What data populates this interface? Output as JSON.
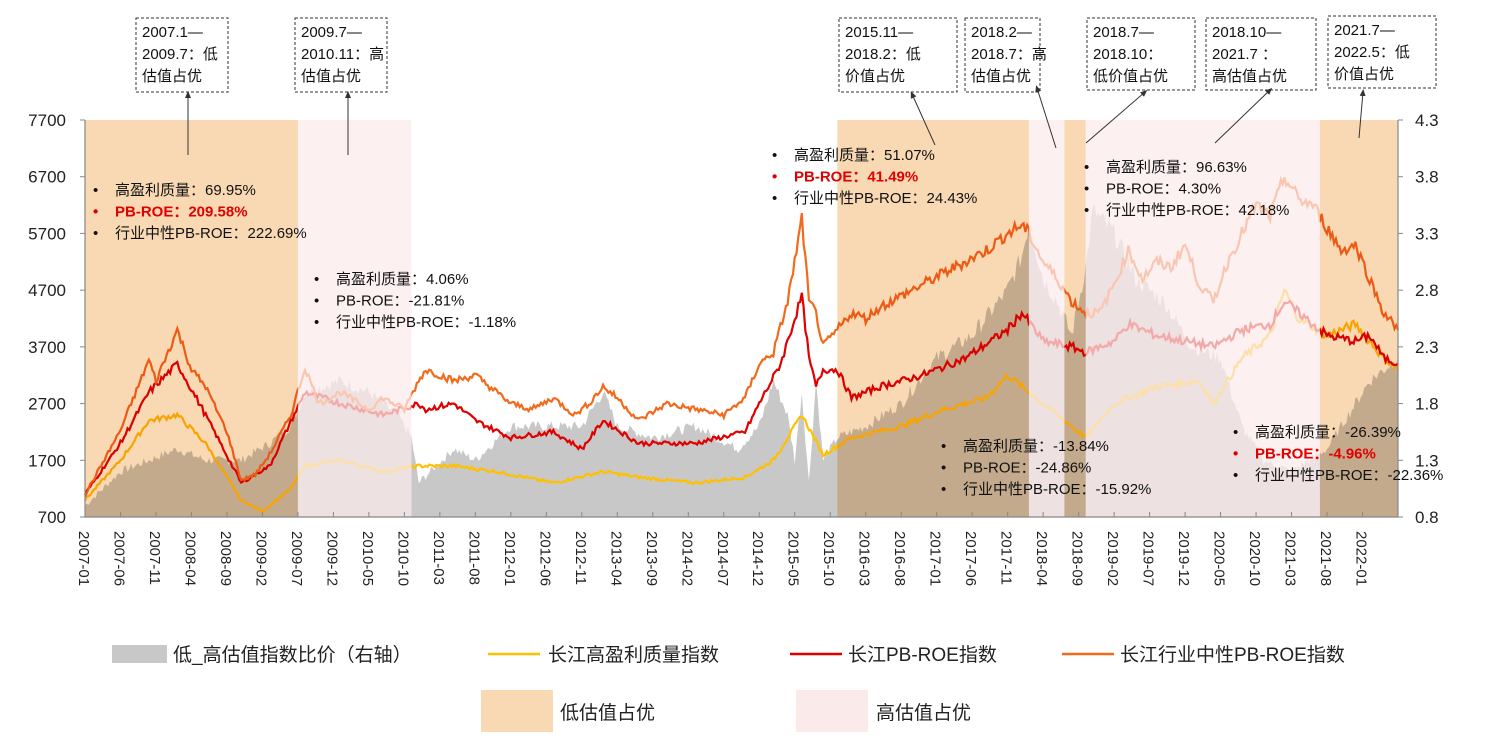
{
  "chart_data": {
    "type": "line",
    "x_unit": "months since 2007-01",
    "left_axis": {
      "range": [
        700,
        7700
      ],
      "ticks": [
        "700",
        "1700",
        "2700",
        "3700",
        "4700",
        "5700",
        "6700",
        "7700"
      ]
    },
    "right_axis": {
      "range": [
        0.8,
        4.3
      ],
      "ticks": [
        "0.8",
        "1.3",
        "1.8",
        "2.3",
        "2.8",
        "3.3",
        "3.8",
        "4.3"
      ]
    },
    "x_ticks": [
      "2007-01",
      "2007-06",
      "2007-11",
      "2008-04",
      "2008-09",
      "2009-02",
      "2009-07",
      "2009-12",
      "2010-05",
      "2010-10",
      "2011-03",
      "2011-08",
      "2012-01",
      "2012-06",
      "2012-11",
      "2013-04",
      "2013-09",
      "2014-02",
      "2014-07",
      "2014-12",
      "2015-05",
      "2015-10",
      "2016-03",
      "2016-08",
      "2017-01",
      "2017-06",
      "2017-11",
      "2018-04",
      "2018-09",
      "2019-02",
      "2019-07",
      "2019-12",
      "2020-05",
      "2020-10",
      "2021-03",
      "2021-08",
      "2022-01"
    ],
    "x_max": 185,
    "series": [
      {
        "name": "低_高估值指数比价（右轴）",
        "type": "area",
        "axis": "right",
        "color": "#c8c8c8",
        "points": [
          [
            0,
            0.9
          ],
          [
            5,
            1.2
          ],
          [
            9,
            1.3
          ],
          [
            13,
            1.4
          ],
          [
            17,
            1.3
          ],
          [
            22,
            1.3
          ],
          [
            26,
            1.45
          ],
          [
            29,
            1.6
          ],
          [
            31,
            1.9
          ],
          [
            36,
            2.0
          ],
          [
            40,
            1.9
          ],
          [
            44,
            1.7
          ],
          [
            46,
            1.5
          ],
          [
            47,
            1.1
          ],
          [
            52,
            1.4
          ],
          [
            55,
            1.3
          ],
          [
            60,
            1.6
          ],
          [
            66,
            1.6
          ],
          [
            70,
            1.6
          ],
          [
            73,
            1.9
          ],
          [
            75,
            1.6
          ],
          [
            80,
            1.5
          ],
          [
            86,
            1.6
          ],
          [
            92,
            1.4
          ],
          [
            95,
            1.6
          ],
          [
            97,
            2.0
          ],
          [
            99,
            1.7
          ],
          [
            100,
            1.3
          ],
          [
            101,
            1.9
          ],
          [
            102,
            1.1
          ],
          [
            103,
            2.0
          ],
          [
            104,
            1.3
          ],
          [
            106,
            1.5
          ],
          [
            110,
            1.6
          ],
          [
            115,
            1.8
          ],
          [
            120,
            2.2
          ],
          [
            125,
            2.4
          ],
          [
            130,
            2.8
          ],
          [
            132,
            3.1
          ],
          [
            133,
            3.4
          ],
          [
            135,
            2.9
          ],
          [
            137,
            2.7
          ],
          [
            139,
            2.4
          ],
          [
            141,
            3.0
          ],
          [
            142,
            3.5
          ],
          [
            145,
            3.3
          ],
          [
            148,
            2.9
          ],
          [
            152,
            2.7
          ],
          [
            156,
            2.3
          ],
          [
            160,
            2.2
          ],
          [
            163,
            1.6
          ],
          [
            166,
            1.3
          ],
          [
            170,
            1.2
          ],
          [
            175,
            1.4
          ],
          [
            178,
            1.7
          ],
          [
            181,
            2.0
          ],
          [
            185,
            2.2
          ]
        ]
      },
      {
        "name": "长江高盈利质量指数",
        "type": "line",
        "axis": "left",
        "color": "#ffc000",
        "points": [
          [
            0,
            1000
          ],
          [
            5,
            1700
          ],
          [
            9,
            2400
          ],
          [
            13,
            2500
          ],
          [
            17,
            2000
          ],
          [
            22,
            1000
          ],
          [
            25,
            800
          ],
          [
            29,
            1200
          ],
          [
            31,
            1600
          ],
          [
            36,
            1700
          ],
          [
            42,
            1500
          ],
          [
            47,
            1600
          ],
          [
            52,
            1600
          ],
          [
            58,
            1500
          ],
          [
            66,
            1300
          ],
          [
            73,
            1500
          ],
          [
            78,
            1400
          ],
          [
            86,
            1300
          ],
          [
            93,
            1400
          ],
          [
            97,
            1700
          ],
          [
            101,
            2500
          ],
          [
            104,
            1800
          ],
          [
            108,
            2100
          ],
          [
            115,
            2300
          ],
          [
            121,
            2600
          ],
          [
            127,
            2800
          ],
          [
            130,
            3200
          ],
          [
            135,
            2700
          ],
          [
            139,
            2300
          ],
          [
            141,
            2100
          ],
          [
            145,
            2700
          ],
          [
            151,
            3000
          ],
          [
            157,
            3100
          ],
          [
            159,
            2700
          ],
          [
            163,
            3500
          ],
          [
            167,
            3900
          ],
          [
            169,
            4700
          ],
          [
            171,
            4200
          ],
          [
            175,
            3900
          ],
          [
            179,
            4100
          ],
          [
            183,
            3500
          ],
          [
            185,
            3300
          ]
        ]
      },
      {
        "name": "长江PB-ROE指数",
        "type": "line",
        "axis": "left",
        "color": "#e00000",
        "points": [
          [
            0,
            1100
          ],
          [
            5,
            2000
          ],
          [
            9,
            2900
          ],
          [
            13,
            3400
          ],
          [
            17,
            2500
          ],
          [
            22,
            1300
          ],
          [
            26,
            1600
          ],
          [
            31,
            2900
          ],
          [
            36,
            2700
          ],
          [
            42,
            2500
          ],
          [
            47,
            2700
          ],
          [
            48,
            2600
          ],
          [
            52,
            2700
          ],
          [
            55,
            2400
          ],
          [
            60,
            2100
          ],
          [
            66,
            2200
          ],
          [
            70,
            1900
          ],
          [
            73,
            2400
          ],
          [
            78,
            2000
          ],
          [
            86,
            2000
          ],
          [
            93,
            2200
          ],
          [
            95,
            2700
          ],
          [
            98,
            3400
          ],
          [
            101,
            4600
          ],
          [
            102,
            3500
          ],
          [
            103,
            3000
          ],
          [
            104,
            3300
          ],
          [
            106,
            3300
          ],
          [
            108,
            2800
          ],
          [
            112,
            3000
          ],
          [
            118,
            3200
          ],
          [
            124,
            3500
          ],
          [
            130,
            4000
          ],
          [
            132,
            4300
          ],
          [
            135,
            3800
          ],
          [
            139,
            3700
          ],
          [
            141,
            3600
          ],
          [
            145,
            3800
          ],
          [
            147,
            4100
          ],
          [
            151,
            3900
          ],
          [
            155,
            3800
          ],
          [
            159,
            3700
          ],
          [
            163,
            4000
          ],
          [
            167,
            4100
          ],
          [
            169,
            4500
          ],
          [
            171,
            4300
          ],
          [
            175,
            3900
          ],
          [
            179,
            3800
          ],
          [
            181,
            3900
          ],
          [
            183,
            3500
          ],
          [
            185,
            3400
          ]
        ]
      },
      {
        "name": "长江行业中性PB-ROE指数",
        "type": "line",
        "axis": "left",
        "color": "#f26b1d",
        "points": [
          [
            0,
            1090
          ],
          [
            5,
            2230
          ],
          [
            9,
            3470
          ],
          [
            10,
            3100
          ],
          [
            13,
            4000
          ],
          [
            15,
            3300
          ],
          [
            17,
            3000
          ],
          [
            20,
            2200
          ],
          [
            22,
            1350
          ],
          [
            24,
            1450
          ],
          [
            26,
            1800
          ],
          [
            29,
            2500
          ],
          [
            31,
            3330
          ],
          [
            33,
            2700
          ],
          [
            36,
            2900
          ],
          [
            40,
            2600
          ],
          [
            42,
            2800
          ],
          [
            45,
            2600
          ],
          [
            47,
            3100
          ],
          [
            48,
            3300
          ],
          [
            52,
            3100
          ],
          [
            55,
            3200
          ],
          [
            58,
            2900
          ],
          [
            60,
            2700
          ],
          [
            63,
            2600
          ],
          [
            66,
            2800
          ],
          [
            69,
            2500
          ],
          [
            71,
            2700
          ],
          [
            73,
            3000
          ],
          [
            75,
            2800
          ],
          [
            78,
            2400
          ],
          [
            82,
            2700
          ],
          [
            86,
            2600
          ],
          [
            90,
            2500
          ],
          [
            93,
            2800
          ],
          [
            95,
            3400
          ],
          [
            97,
            3600
          ],
          [
            99,
            4500
          ],
          [
            100,
            5200
          ],
          [
            101,
            5970
          ],
          [
            102,
            4500
          ],
          [
            103,
            4300
          ],
          [
            104,
            3700
          ],
          [
            106,
            4000
          ],
          [
            108,
            4300
          ],
          [
            110,
            4200
          ],
          [
            112,
            4400
          ],
          [
            115,
            4600
          ],
          [
            118,
            4800
          ],
          [
            121,
            5000
          ],
          [
            124,
            5200
          ],
          [
            127,
            5400
          ],
          [
            130,
            5700
          ],
          [
            132,
            5850
          ],
          [
            133,
            5700
          ],
          [
            135,
            5200
          ],
          [
            137,
            4900
          ],
          [
            139,
            4500
          ],
          [
            141,
            4300
          ],
          [
            143,
            4300
          ],
          [
            145,
            4800
          ],
          [
            147,
            5400
          ],
          [
            149,
            4900
          ],
          [
            151,
            5200
          ],
          [
            153,
            5100
          ],
          [
            155,
            5500
          ],
          [
            157,
            4800
          ],
          [
            159,
            4500
          ],
          [
            161,
            5200
          ],
          [
            163,
            5700
          ],
          [
            165,
            6200
          ],
          [
            167,
            6000
          ],
          [
            169,
            6700
          ],
          [
            171,
            6300
          ],
          [
            173,
            6200
          ],
          [
            175,
            5800
          ],
          [
            177,
            5400
          ],
          [
            179,
            5500
          ],
          [
            181,
            4900
          ],
          [
            183,
            4300
          ],
          [
            185,
            4000
          ]
        ]
      }
    ],
    "regions": [
      {
        "start": 0,
        "end": 30,
        "kind": "low"
      },
      {
        "start": 30,
        "end": 46,
        "kind": "high"
      },
      {
        "start": 106,
        "end": 133,
        "kind": "low"
      },
      {
        "start": 133,
        "end": 138,
        "kind": "high"
      },
      {
        "start": 138,
        "end": 141,
        "kind": "low"
      },
      {
        "start": 141,
        "end": 174,
        "kind": "high"
      },
      {
        "start": 174,
        "end": 185,
        "kind": "low"
      }
    ],
    "region_colors": {
      "low": "#f9d9b3",
      "high": "#fbeaea"
    },
    "annotation_boxes": [
      [
        "2007.1—",
        "2009.7：低",
        "估值占优"
      ],
      [
        "2009.7—",
        "2010.11：高",
        "估值占优"
      ],
      [
        "2015.11—",
        "2018.2：低",
        "价值占优"
      ],
      [
        "2018.2—",
        "2018.7：高",
        "估值占优"
      ],
      [
        "2018.7—",
        "2018.10：",
        "低价值占优"
      ],
      [
        "2018.10—",
        "2021.7 ：",
        "高估值占优"
      ],
      [
        "2021.7—",
        "2022.5：低",
        "价值占优"
      ]
    ],
    "stats": [
      [
        "高盈利质量：69.95%",
        "PB-ROE：209.58%",
        "行业中性PB-ROE：222.69%"
      ],
      [
        "高盈利质量：4.06%",
        "PB-ROE：-21.81%",
        "行业中性PB-ROE：-1.18%"
      ],
      [
        "高盈利质量：51.07%",
        "PB-ROE：41.49%",
        "行业中性PB-ROE：24.43%"
      ],
      [
        "高盈利质量：96.63%",
        "PB-ROE：4.30%",
        "行业中性PB-ROE：42.18%"
      ],
      [
        "高盈利质量：-13.84%",
        "PB-ROE：-24.86%",
        "行业中性PB-ROE：-15.92%"
      ],
      [
        "高盈利质量：-26.39%",
        "PB-ROE：-4.96%",
        "行业中性PB-ROE：-22.36%"
      ]
    ],
    "stats_highlight": [
      true,
      false,
      true,
      false,
      false,
      true
    ],
    "region_legend": {
      "low": "低估值占优",
      "high": "高估值占优"
    },
    "bullet": "•"
  }
}
